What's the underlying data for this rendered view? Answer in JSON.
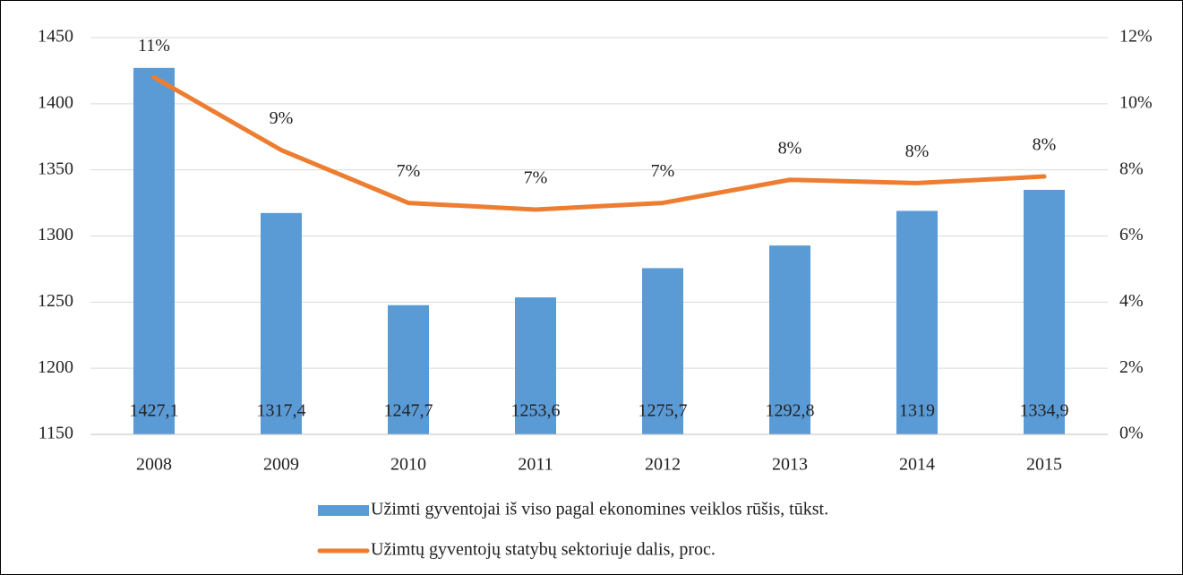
{
  "chart_data": {
    "type": "combo",
    "categories": [
      "2008",
      "2009",
      "2010",
      "2011",
      "2012",
      "2013",
      "2014",
      "2015"
    ],
    "series": [
      {
        "name": "Užimti gyventojai iš viso pagal ekonomines veiklos rūšis, tūkst.",
        "type": "bar",
        "color": "#5b9bd5",
        "values": [
          1427.1,
          1317.4,
          1247.7,
          1253.6,
          1275.7,
          1292.8,
          1319,
          1334.9
        ],
        "value_labels": [
          "1427,1",
          "1317,4",
          "1247,7",
          "1253,6",
          "1275,7",
          "1292,8",
          "1319",
          "1334,9"
        ]
      },
      {
        "name": "Užimtų gyventojų statybų sektoriuje dalis, proc.",
        "type": "line",
        "color": "#ed7d31",
        "axis": "y2",
        "values": [
          10.8,
          8.6,
          7.0,
          6.8,
          7.0,
          7.7,
          7.6,
          7.8
        ],
        "value_labels": [
          "11%",
          "9%",
          "7%",
          "7%",
          "7%",
          "8%",
          "8%",
          "8%"
        ]
      }
    ],
    "ylim": [
      1150,
      1450
    ],
    "yticks": [
      1150,
      1200,
      1250,
      1300,
      1350,
      1400,
      1450
    ],
    "y2lim": [
      0,
      12
    ],
    "y2ticks": [
      {
        "value": 0,
        "label": "0%"
      },
      {
        "value": 2,
        "label": "2%"
      },
      {
        "value": 4,
        "label": "4%"
      },
      {
        "value": 6,
        "label": "6%"
      },
      {
        "value": 8,
        "label": "8%"
      },
      {
        "value": 10,
        "label": "10%"
      },
      {
        "value": 12,
        "label": "12%"
      }
    ],
    "grid": true
  }
}
